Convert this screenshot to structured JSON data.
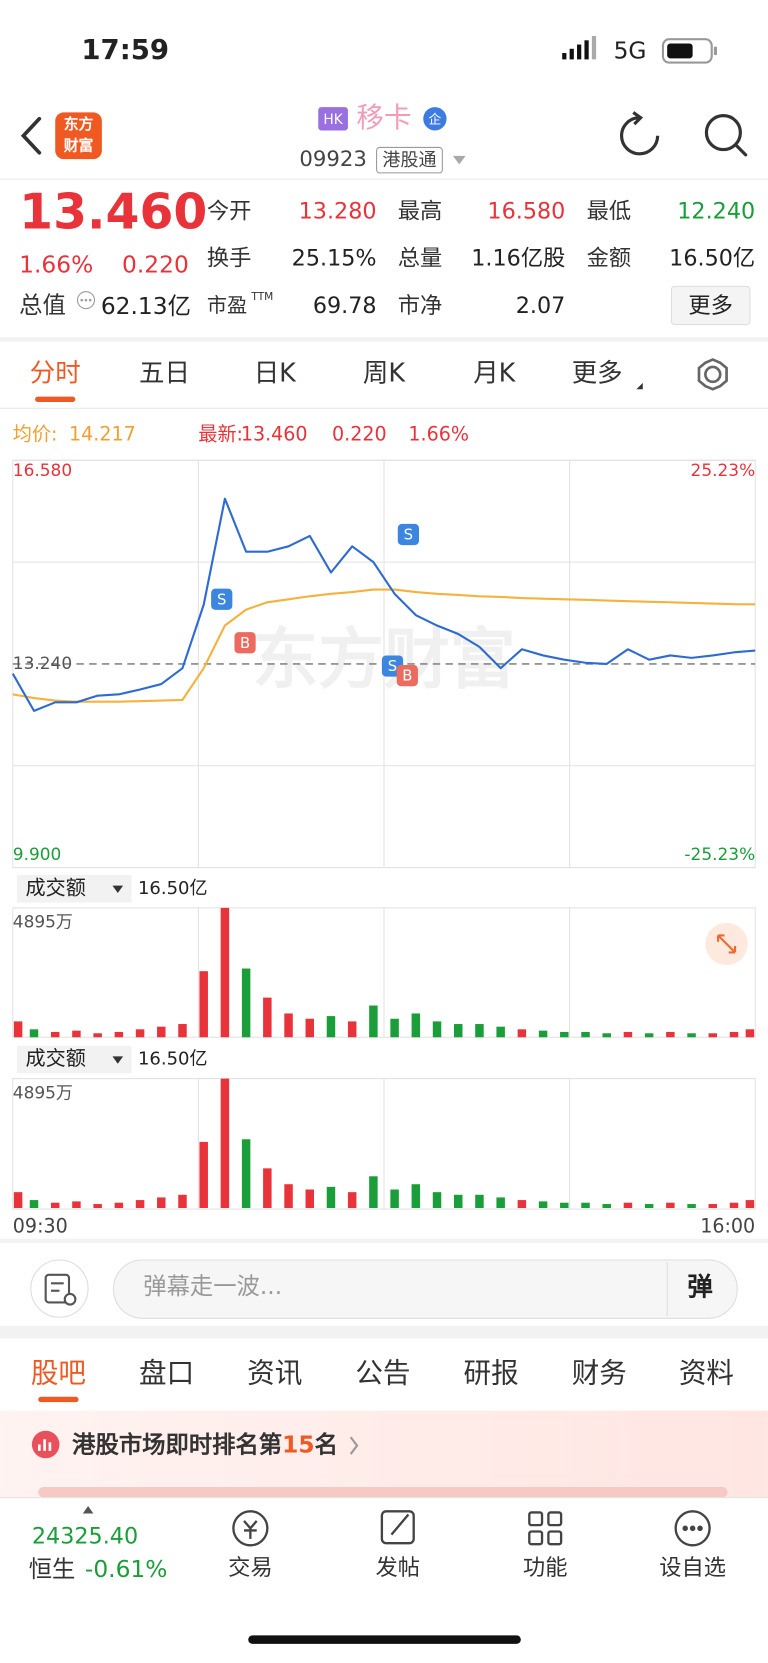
{
  "status_bar": {
    "time": "17:59",
    "network": "5G"
  },
  "header": {
    "logo": [
      "东方",
      "财富"
    ],
    "market_badge": "HK",
    "name": "移卡",
    "name_tag": "企",
    "code": "09923",
    "connect": "港股通"
  },
  "quote": {
    "price": "13.460",
    "change_pct": "1.66%",
    "change": "0.220",
    "market_cap_label": "总值",
    "market_cap": "62.13亿",
    "more": "更多",
    "fields": [
      [
        {
          "label": "今开",
          "value": "13.280",
          "color": "#e8333b"
        },
        {
          "label": "最高",
          "value": "16.580",
          "color": "#e8333b"
        },
        {
          "label": "最低",
          "value": "12.240",
          "color": "#1a9e3a"
        }
      ],
      [
        {
          "label": "换手",
          "value": "25.15%",
          "color": "#222222"
        },
        {
          "label": "总量",
          "value": "1.16亿股",
          "color": "#222222"
        },
        {
          "label": "金额",
          "value": "16.50亿",
          "color": "#222222"
        }
      ],
      [
        {
          "label": "市盈",
          "sup": "TTM",
          "value": "69.78",
          "color": "#222222"
        },
        {
          "label": "市净",
          "value": "2.07",
          "color": "#222222"
        }
      ]
    ]
  },
  "tabs": {
    "items": [
      "分时",
      "五日",
      "日K",
      "周K",
      "月K",
      "更多"
    ],
    "active": 0
  },
  "intraday_chart": {
    "type": "line",
    "avg_label": "均价:",
    "avg": "14.217",
    "last_label": "最新:",
    "last": "13.460",
    "change": "0.220",
    "change_pct": "1.66%",
    "watermark": "东方财富",
    "series": [
      {
        "color": "#2e6bd1",
        "values": [
          13.08,
          12.47,
          12.61,
          12.61,
          12.72,
          12.74,
          12.82,
          12.91,
          13.17,
          14.21,
          15.95,
          15.08,
          15.08,
          15.17,
          15.34,
          14.74,
          15.17,
          14.91,
          14.39,
          14.04,
          13.87,
          13.73,
          13.52,
          13.17,
          13.48,
          13.38,
          13.31,
          13.26,
          13.24,
          13.48,
          13.31,
          13.38,
          13.34,
          13.38,
          13.43,
          13.46
        ]
      },
      {
        "color": "#f5b23c",
        "values": [
          12.74,
          12.68,
          12.64,
          12.62,
          12.62,
          12.62,
          12.63,
          12.64,
          12.65,
          13.17,
          13.87,
          14.13,
          14.25,
          14.3,
          14.35,
          14.39,
          14.42,
          14.46,
          14.46,
          14.42,
          14.39,
          14.37,
          14.35,
          14.34,
          14.32,
          14.31,
          14.3,
          14.29,
          14.28,
          14.27,
          14.26,
          14.25,
          14.24,
          14.23,
          14.22,
          14.217
        ]
      }
    ],
    "ylim": [
      9.9,
      16.58
    ],
    "yticks": [
      {
        "value": 16.58,
        "label": "16.580"
      },
      {
        "value": 13.24,
        "label": "13.240"
      },
      {
        "value": 9.9,
        "label": "9.900"
      }
    ],
    "y2lim": [
      -25.23,
      25.23
    ],
    "y2ticks": [
      {
        "value": 25.23,
        "label": "25.23%"
      },
      {
        "value": -25.23,
        "label": "-25.23%"
      }
    ],
    "trade_marks": [
      "S",
      "B",
      "S",
      "S",
      "B"
    ]
  },
  "volume_chart": {
    "type": "bar",
    "title": "成交额",
    "total": "16.50亿",
    "values": [
      600,
      300,
      200,
      250,
      150,
      200,
      300,
      400,
      500,
      2500,
      4895,
      2600,
      1500,
      900,
      700,
      800,
      600,
      1200,
      700,
      900,
      600,
      500,
      500,
      400,
      300,
      250,
      200,
      200,
      150,
      200,
      150,
      200,
      150,
      150,
      200,
      300
    ],
    "up_color": "#e8333b",
    "down_color": "#1a9e3a",
    "ylim": [
      0,
      4895
    ],
    "yticks": [
      {
        "value": 4895,
        "label": "4895万"
      }
    ],
    "x_labels": [
      "09:30",
      "16:00"
    ]
  },
  "comment_bar": {
    "placeholder": "弹幕走一波...",
    "button": "弹"
  },
  "section_tabs": {
    "items": [
      "股吧",
      "盘口",
      "资讯",
      "公告",
      "研报",
      "财务",
      "资料"
    ],
    "active": 0
  },
  "banner": {
    "text": "港股市场即时排名第",
    "rank": "15",
    "suffix": "名"
  },
  "bottom_nav": {
    "index_value": "24325.40",
    "index_name": "恒生",
    "index_change": "-0.61%",
    "items": [
      "交易",
      "发帖",
      "功能",
      "设自选"
    ]
  }
}
